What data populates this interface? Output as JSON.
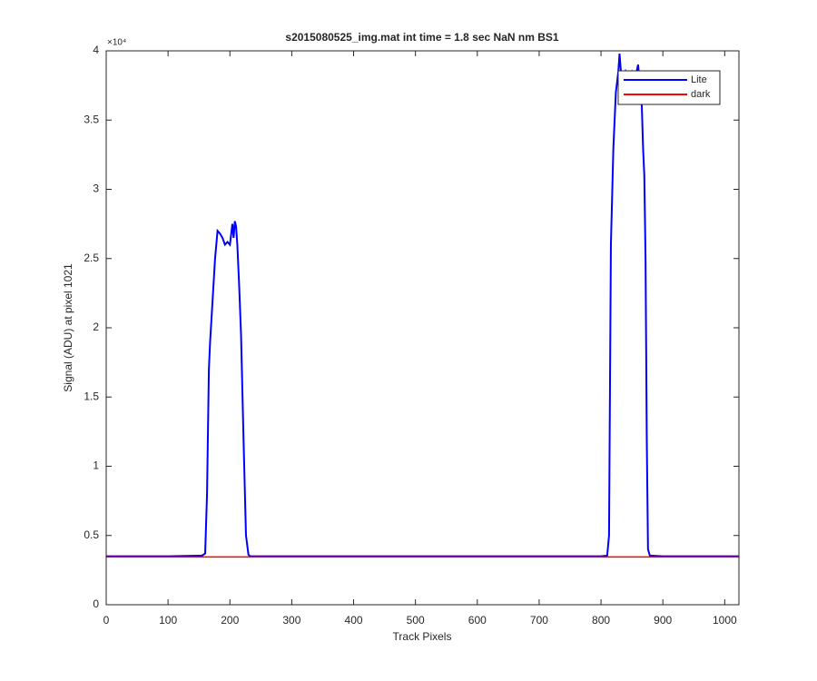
{
  "chart_data": {
    "type": "line",
    "title": "s2015080525_img.mat int time = 1.8 sec  NaN nm BS1",
    "x_label": "Track Pixels",
    "y_label": "Signal (ADU) at pixel 1021",
    "y_exponent": "×10⁴",
    "x": [
      0,
      100,
      155,
      160,
      163,
      166,
      168,
      172,
      176,
      180,
      184,
      188,
      192,
      196,
      200,
      204,
      206,
      208,
      210,
      212,
      215,
      218,
      222,
      226,
      230,
      233,
      300,
      500,
      700,
      800,
      810,
      813,
      816,
      820,
      824,
      828,
      830,
      833,
      836,
      840,
      845,
      850,
      855,
      860,
      863,
      866,
      868,
      870,
      872,
      874,
      876,
      879,
      900,
      1023
    ],
    "series": [
      {
        "name": "Lite",
        "color": "#0000ff",
        "values": [
          3500,
          3500,
          3550,
          3700,
          8000,
          17000,
          19000,
          22000,
          25000,
          27000,
          26800,
          26500,
          26000,
          26200,
          26000,
          27500,
          26500,
          27700,
          27300,
          26000,
          23000,
          19500,
          12000,
          5000,
          3600,
          3500,
          3500,
          3500,
          3500,
          3500,
          3550,
          5000,
          26000,
          33000,
          37000,
          38500,
          39800,
          38000,
          37500,
          38500,
          38000,
          38500,
          38000,
          39000,
          37500,
          36000,
          33000,
          31000,
          25000,
          12000,
          4000,
          3550,
          3500,
          3500
        ]
      },
      {
        "name": "dark",
        "color": "#ff0000",
        "values": [
          3450,
          3450,
          3450,
          3450,
          3450,
          3450,
          3450,
          3450,
          3450,
          3450,
          3450,
          3450,
          3450,
          3450,
          3450,
          3450,
          3450,
          3450,
          3450,
          3450,
          3450,
          3450,
          3450,
          3450,
          3450,
          3450,
          3450,
          3450,
          3450,
          3450,
          3450,
          3450,
          3450,
          3450,
          3450,
          3450,
          3450,
          3450,
          3450,
          3450,
          3450,
          3450,
          3450,
          3450,
          3450,
          3450,
          3450,
          3450,
          3450,
          3450,
          3450,
          3450,
          3450,
          3450
        ]
      }
    ],
    "xlim": [
      0,
      1023
    ],
    "ylim": [
      0,
      40000
    ],
    "xticks": [
      0,
      100,
      200,
      300,
      400,
      500,
      600,
      700,
      800,
      900,
      1000
    ],
    "yticks": [
      0,
      {
        "value": 5000,
        "label": "0.5"
      },
      {
        "value": 10000,
        "label": "1"
      },
      {
        "value": 15000,
        "label": "1.5"
      },
      {
        "value": 20000,
        "label": "2"
      },
      {
        "value": 25000,
        "label": "2.5"
      },
      {
        "value": 30000,
        "label": "3"
      },
      {
        "value": 35000,
        "label": "3.5"
      },
      {
        "value": 40000,
        "label": "4"
      }
    ],
    "grid": false,
    "legend": "upper right"
  }
}
